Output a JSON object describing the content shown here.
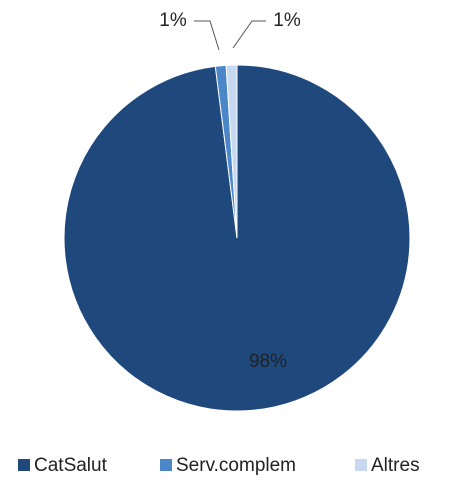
{
  "chart_data": {
    "type": "pie",
    "categories": [
      "CatSalut",
      "Serv.complem",
      "Altres"
    ],
    "values": [
      98,
      1,
      1
    ],
    "value_labels": [
      "98%",
      "1%",
      "1%"
    ],
    "colors": [
      "#1f497d",
      "#4a86c8",
      "#c6d9f1"
    ],
    "legend": "bottom"
  }
}
